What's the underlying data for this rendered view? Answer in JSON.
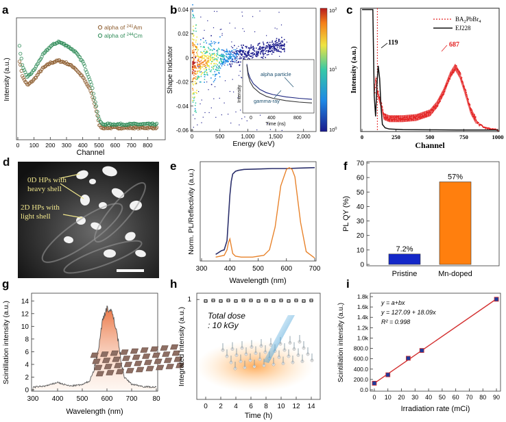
{
  "chart_data": [
    {
      "id": "a",
      "type": "scatter",
      "panel_label": "a",
      "xlabel": "Channel",
      "ylabel": "Intensity (a.u.)",
      "xlim": [
        0,
        900
      ],
      "x_ticks": [
        "0",
        "100",
        "200",
        "300",
        "400",
        "500",
        "600",
        "700",
        "800"
      ],
      "series": [
        {
          "name": "alpha of 241Am",
          "legend_prefix": "alpha of ",
          "legend_sup": "241",
          "legend_suffix": "Am",
          "color": "#8b5a2b",
          "x": [
            10,
            30,
            60,
            100,
            150,
            200,
            250,
            300,
            350,
            400,
            450,
            480,
            500,
            520,
            550,
            600,
            650,
            700,
            750,
            800,
            850
          ],
          "y": [
            0.66,
            0.52,
            0.45,
            0.5,
            0.59,
            0.64,
            0.66,
            0.64,
            0.6,
            0.52,
            0.4,
            0.26,
            0.12,
            0.09,
            0.09,
            0.09,
            0.09,
            0.09,
            0.09,
            0.09,
            0.09
          ]
        },
        {
          "name": "alpha of 244Cm",
          "legend_prefix": "alpha of ",
          "legend_sup": "244",
          "legend_suffix": "Cm",
          "color": "#2e8b57",
          "x": [
            10,
            30,
            60,
            100,
            150,
            200,
            250,
            300,
            350,
            400,
            450,
            480,
            500,
            520,
            550,
            600,
            650,
            700,
            750,
            800,
            850
          ],
          "y": [
            0.78,
            0.6,
            0.52,
            0.58,
            0.7,
            0.78,
            0.82,
            0.79,
            0.74,
            0.65,
            0.48,
            0.3,
            0.16,
            0.12,
            0.12,
            0.12,
            0.12,
            0.12,
            0.12,
            0.12,
            0.12
          ]
        }
      ]
    },
    {
      "id": "b",
      "type": "heatmap",
      "panel_label": "b",
      "xlabel": "Energy (keV)",
      "ylabel": "Shape Indicator",
      "xlim": [
        0,
        2200
      ],
      "ylim": [
        -0.06,
        0.04
      ],
      "x_ticks": [
        "0",
        "500",
        "1,000",
        "1,500",
        "2,000"
      ],
      "y_ticks": [
        "0.04",
        "0.02",
        "0",
        "-0.02",
        "-0.04",
        "-0.06"
      ],
      "colorbar_ticks": {
        "base": "10",
        "exponents": [
          "2",
          "1",
          "0"
        ]
      },
      "band_x": [
        0,
        100,
        200,
        300,
        400,
        500,
        600,
        800,
        1000,
        1200,
        1400,
        1600
      ],
      "band_y": [
        -0.005,
        -0.004,
        -0.003,
        -0.002,
        -0.001,
        0.0,
        0.001,
        0.002,
        0.004,
        0.006,
        0.008,
        0.01
      ],
      "inset": {
        "xlabel": "Time (ns)",
        "ylabel": "Intensity",
        "x_ticks": [
          "0",
          "400",
          "800"
        ],
        "annotations": [
          "alpha particle",
          "gamma-ray"
        ],
        "series": [
          {
            "name": "alpha particle",
            "x": [
              0,
              20,
              50,
              100,
              200,
              300,
              400,
              600,
              800,
              1000
            ],
            "y": [
              1.0,
              0.82,
              0.7,
              0.58,
              0.46,
              0.39,
              0.35,
              0.3,
              0.27,
              0.25
            ]
          },
          {
            "name": "gamma-ray",
            "x": [
              0,
              20,
              50,
              100,
              200,
              300,
              400,
              600,
              800,
              1000
            ],
            "y": [
              1.0,
              0.78,
              0.64,
              0.52,
              0.4,
              0.33,
              0.29,
              0.24,
              0.21,
              0.19
            ]
          }
        ]
      }
    },
    {
      "id": "c",
      "type": "line",
      "panel_label": "c",
      "xlabel": "Channel",
      "ylabel": "Intensity (a.u.)",
      "xlim": [
        0,
        1000
      ],
      "x_ticks": [
        "0",
        "250",
        "500",
        "750",
        "1000"
      ],
      "peak_labels": [
        "119",
        "687"
      ],
      "series": [
        {
          "name": "BA2PbBr4",
          "legend_prefix": "BA",
          "legend_sub1": "2",
          "legend_mid": "PbBr",
          "legend_sub2": "4",
          "color": "#e32020",
          "x": [
            90,
            100,
            110,
            120,
            140,
            160,
            200,
            300,
            400,
            500,
            550,
            600,
            650,
            687,
            720,
            750,
            800,
            850,
            900,
            950,
            1000
          ],
          "y": [
            0.3,
            0.45,
            0.35,
            0.3,
            0.22,
            0.12,
            0.1,
            0.1,
            0.11,
            0.15,
            0.22,
            0.33,
            0.48,
            0.55,
            0.48,
            0.37,
            0.17,
            0.06,
            0.02,
            0.01,
            0.0
          ]
        },
        {
          "name": "EJ228",
          "color": "#111111",
          "x": [
            0,
            50,
            70,
            80,
            90,
            100,
            110,
            119,
            130,
            140,
            150,
            170,
            200,
            300,
            500,
            700,
            1000
          ],
          "y": [
            1.05,
            1.05,
            1.05,
            1.05,
            0.3,
            0.12,
            0.4,
            0.56,
            0.45,
            0.2,
            0.05,
            0.02,
            0.01,
            0.005,
            0.003,
            0.002,
            0.001
          ]
        }
      ]
    },
    {
      "id": "f",
      "type": "bar",
      "panel_label": "f",
      "ylabel": "PL QY (%)",
      "categories": [
        "Pristine",
        "Mn-doped"
      ],
      "values": [
        7.2,
        57
      ],
      "value_labels": [
        "7.2%",
        "57%"
      ],
      "colors": [
        "#1428c8",
        "#ff7f0e"
      ],
      "ylim": [
        0,
        70
      ],
      "y_ticks": [
        "0",
        "10",
        "20",
        "30",
        "40",
        "50",
        "60",
        "70"
      ]
    },
    {
      "id": "e",
      "type": "line",
      "panel_label": "e",
      "xlabel": "Wavelength (nm)",
      "ylabel": "Norm. PL/Reflectivity (a.u.)",
      "xlim": [
        300,
        700
      ],
      "x_ticks": [
        "300",
        "400",
        "500",
        "600",
        "700"
      ],
      "series": [
        {
          "name": "Reflectivity",
          "color": "#2b2f6b",
          "x": [
            350,
            360,
            370,
            380,
            390,
            395,
            400,
            405,
            410,
            420,
            430,
            450,
            500,
            550,
            600,
            650,
            700
          ],
          "y": [
            0.05,
            0.07,
            0.09,
            0.1,
            0.2,
            0.45,
            0.7,
            0.85,
            0.93,
            0.96,
            0.97,
            0.98,
            0.985,
            0.99,
            0.99,
            0.995,
            1.0
          ]
        },
        {
          "name": "PL",
          "color": "#e8822a",
          "x": [
            350,
            380,
            390,
            395,
            400,
            405,
            410,
            420,
            440,
            480,
            520,
            540,
            560,
            580,
            600,
            610,
            620,
            630,
            650,
            670,
            700
          ],
          "y": [
            0.02,
            0.04,
            0.1,
            0.18,
            0.22,
            0.14,
            0.06,
            0.03,
            0.02,
            0.02,
            0.04,
            0.1,
            0.35,
            0.8,
            0.98,
            1.0,
            0.98,
            0.9,
            0.4,
            0.08,
            0.01
          ]
        }
      ]
    },
    {
      "id": "g",
      "type": "area",
      "panel_label": "g",
      "xlabel": "Wavelength (nm)",
      "ylabel": "Scintillation intensity (a.u.)",
      "xlim": [
        300,
        800
      ],
      "ylim": [
        0,
        15
      ],
      "x_ticks": [
        "300",
        "400",
        "500",
        "600",
        "700",
        "80"
      ],
      "y_ticks": [
        "0",
        "2",
        "4",
        "6",
        "8",
        "10",
        "12",
        "14"
      ],
      "x": [
        300,
        350,
        380,
        400,
        420,
        450,
        500,
        530,
        550,
        570,
        580,
        590,
        600,
        610,
        620,
        630,
        640,
        650,
        660,
        670,
        700,
        750,
        800
      ],
      "y": [
        0.4,
        0.6,
        0.9,
        1.2,
        0.9,
        0.6,
        0.8,
        1.4,
        3.5,
        7.5,
        10.5,
        12.0,
        13.0,
        12.5,
        12.0,
        11.0,
        9.0,
        6.5,
        4.0,
        2.0,
        0.9,
        0.5,
        0.4
      ]
    },
    {
      "id": "h",
      "type": "scatter",
      "panel_label": "h",
      "xlabel": "Time (h)",
      "ylabel": "Integrated intensity (a.u.)",
      "xlim": [
        -1,
        15
      ],
      "ylim": [
        0,
        1.05
      ],
      "x_ticks": [
        "0",
        "2",
        "4",
        "6",
        "8",
        "10",
        "12",
        "14"
      ],
      "y_ticks": [
        "1"
      ],
      "annotation_lines": [
        "Total dose",
        ": 10 kGy"
      ],
      "x": [
        0,
        1,
        2,
        3,
        4,
        5,
        6,
        7,
        8,
        9,
        10,
        11,
        12,
        13,
        14
      ],
      "y": [
        0.985,
        0.99,
        0.985,
        0.99,
        0.985,
        0.99,
        0.99,
        0.985,
        0.99,
        0.985,
        0.99,
        0.985,
        0.99,
        0.985,
        0.99
      ]
    },
    {
      "id": "i",
      "type": "scatter",
      "panel_label": "i",
      "xlabel": "Irradiation rate (mCi)",
      "ylabel": "Scintillation intensity (a.u.)",
      "xlim": [
        -2,
        92
      ],
      "ylim": [
        0,
        1800
      ],
      "x_ticks": [
        "0",
        "10",
        "20",
        "30",
        "40",
        "50",
        "60",
        "70",
        "80",
        "90"
      ],
      "y_ticks": [
        "0.0",
        "200.0",
        "400.0",
        "600.0",
        "800.0",
        "1.0k",
        "1.2k",
        "1.4k",
        "1.6k",
        "1.8k"
      ],
      "equation_lines": [
        "y = a+bx",
        "y = 127.09 + 18.09x",
        "R² = 0.998"
      ],
      "x": [
        0,
        10,
        25,
        35,
        90
      ],
      "y": [
        127,
        290,
        610,
        760,
        1750
      ],
      "fit": {
        "intercept": 127.09,
        "slope": 18.09
      }
    }
  ],
  "panel_d": {
    "label": "d",
    "annotation_0d": [
      "0D HPs with",
      "heavy shell"
    ],
    "annotation_2d": [
      "2D HPs with",
      "light shell"
    ]
  }
}
